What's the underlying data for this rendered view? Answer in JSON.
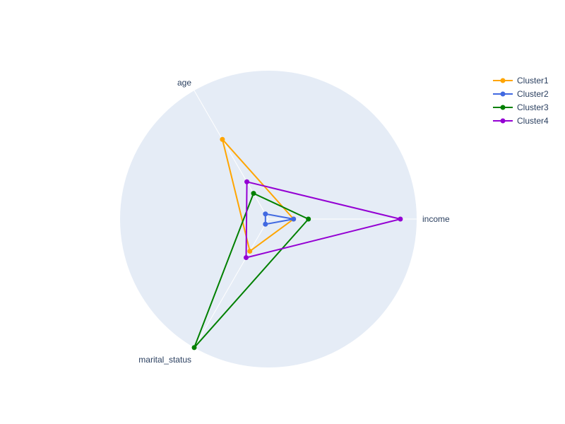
{
  "chart_data": {
    "type": "radar",
    "axes": [
      "income",
      "age",
      "marital_status"
    ],
    "range": [
      0,
      1
    ],
    "series": [
      {
        "name": "Cluster1",
        "color": "#FFA500",
        "values": [
          0.17,
          0.62,
          0.25
        ]
      },
      {
        "name": "Cluster2",
        "color": "#4169E1",
        "values": [
          0.17,
          0.04,
          0.04
        ]
      },
      {
        "name": "Cluster3",
        "color": "#008000",
        "values": [
          0.27,
          0.2,
          1.0
        ]
      },
      {
        "name": "Cluster4",
        "color": "#9400D3",
        "values": [
          0.89,
          0.29,
          0.3
        ]
      }
    ],
    "grid": true,
    "legend": "top-right",
    "background": "#E5ECF6"
  }
}
